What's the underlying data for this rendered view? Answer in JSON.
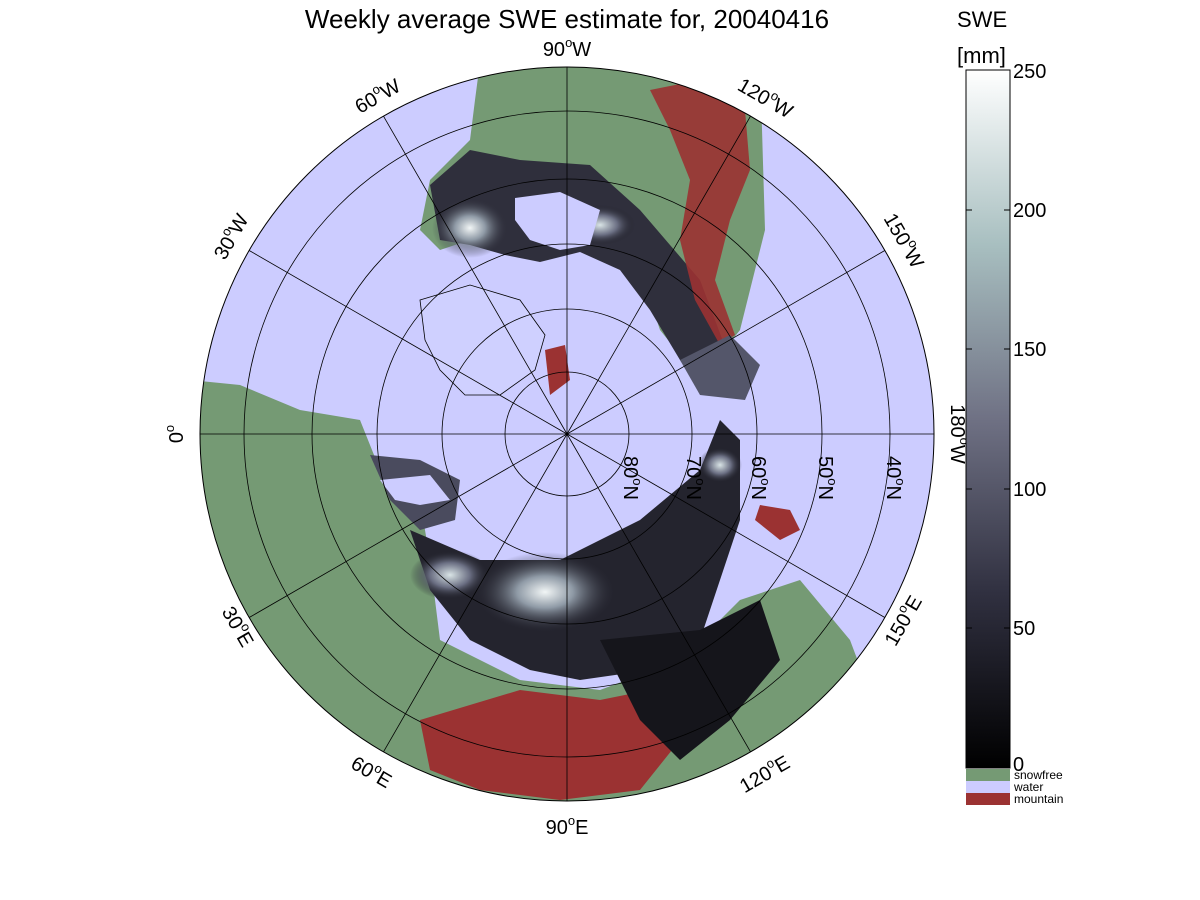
{
  "title": "Weekly average SWE estimate for, 20040416",
  "colorbar": {
    "label_line1": "SWE",
    "label_line2": "[mm]",
    "ticks": [
      "0",
      "50",
      "100",
      "150",
      "200",
      "250"
    ],
    "range": [
      0,
      250
    ],
    "colors": {
      "low": "#000000",
      "mid": "#6f7184",
      "high": "#ffffff"
    }
  },
  "legend": {
    "items": [
      {
        "label": "snowfree",
        "color": "#759a74"
      },
      {
        "label": "water",
        "color": "#ccccff"
      },
      {
        "label": "mountain",
        "color": "#9b3232"
      }
    ]
  },
  "map": {
    "projection": "north polar stereographic",
    "ocean_color": "#ccccff",
    "land_color": "#759a74",
    "mountain_color": "#9b3232",
    "longitude_labels": [
      {
        "deg": "0",
        "dir": ""
      },
      {
        "deg": "30",
        "dir": "W"
      },
      {
        "deg": "60",
        "dir": "W"
      },
      {
        "deg": "90",
        "dir": "W"
      },
      {
        "deg": "120",
        "dir": "W"
      },
      {
        "deg": "150",
        "dir": "W"
      },
      {
        "deg": "180",
        "dir": "W"
      },
      {
        "deg": "150",
        "dir": "E"
      },
      {
        "deg": "120",
        "dir": "E"
      },
      {
        "deg": "90",
        "dir": "E"
      },
      {
        "deg": "60",
        "dir": "E"
      },
      {
        "deg": "30",
        "dir": "E"
      }
    ],
    "latitude_labels": [
      "80",
      "70",
      "60",
      "50",
      "40"
    ],
    "latitude_suffix": "N",
    "degree_symbol": "o"
  }
}
